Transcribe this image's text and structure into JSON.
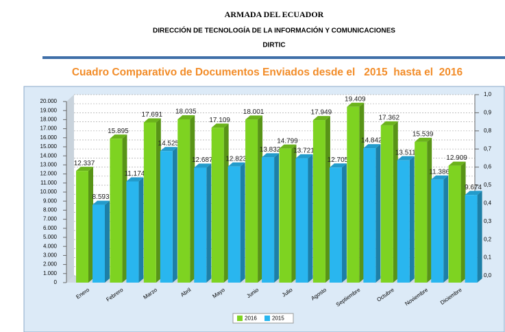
{
  "header": {
    "org": "ARMADA DEL ECUADOR",
    "department": "DIRECCIÓN DE TECNOLOGÍA DE LA INFORMACIÓN Y COMUNICACIONES",
    "acronym": "DIRTIC"
  },
  "chart_data": {
    "type": "bar",
    "title": "Cuadro Comparativo de Documentos Enviados desde el   2015  hasta el  2016",
    "categories": [
      "Enero",
      "Febrero",
      "Marzo",
      "Abril",
      "Mayo",
      "Junio",
      "Julio",
      "Agosto",
      "Septiembre",
      "Octubre",
      "Noviembre",
      "Diciembre"
    ],
    "series": [
      {
        "name": "2016",
        "color": "#7ed321",
        "values": [
          12337,
          15895,
          17691,
          18035,
          17109,
          18001,
          14799,
          17949,
          19409,
          17362,
          15539,
          12909
        ],
        "value_labels": [
          "12.337",
          "15.895",
          "17.691",
          "18.035",
          "17.109",
          "18.001",
          "14.799",
          "17.949",
          "19.409",
          "17.362",
          "15.539",
          "12.909"
        ]
      },
      {
        "name": "2015",
        "color": "#29b6ef",
        "values": [
          8593,
          11174,
          14525,
          12687,
          12823,
          13832,
          13721,
          12705,
          14842,
          13511,
          11386,
          9674
        ],
        "value_labels": [
          "8.593",
          "11.174",
          "14.525",
          "12.687",
          "12.823",
          "13.832",
          "13.721",
          "12.705",
          "14.842",
          "13.511",
          "11.386",
          "9.674"
        ]
      }
    ],
    "ylim": [
      0,
      20000
    ],
    "yticks": [
      {
        "value": 0,
        "label": "0"
      },
      {
        "value": 1000,
        "label": "1.000"
      },
      {
        "value": 2000,
        "label": "2.000"
      },
      {
        "value": 3000,
        "label": "3.000"
      },
      {
        "value": 4000,
        "label": "4.000"
      },
      {
        "value": 5000,
        "label": "5.000"
      },
      {
        "value": 6000,
        "label": "6.000"
      },
      {
        "value": 7000,
        "label": "7.000"
      },
      {
        "value": 8000,
        "label": "8.000"
      },
      {
        "value": 9000,
        "label": "9.000"
      },
      {
        "value": 10000,
        "label": "10.000"
      },
      {
        "value": 11000,
        "label": "11.000"
      },
      {
        "value": 12000,
        "label": "12.000"
      },
      {
        "value": 13000,
        "label": "13.000"
      },
      {
        "value": 14000,
        "label": "14.000"
      },
      {
        "value": 15000,
        "label": "15.000"
      },
      {
        "value": 16000,
        "label": "16.000"
      },
      {
        "value": 17000,
        "label": "17.000"
      },
      {
        "value": 18000,
        "label": "18.000"
      },
      {
        "value": 19000,
        "label": "19.000"
      },
      {
        "value": 20000,
        "label": "20.000"
      }
    ],
    "y2lim": [
      0,
      1
    ],
    "y2ticks": [
      {
        "value": 0,
        "label": "0,0"
      },
      {
        "value": 0.1,
        "label": "0,1"
      },
      {
        "value": 0.2,
        "label": "0,2"
      },
      {
        "value": 0.3,
        "label": "0,3"
      },
      {
        "value": 0.4,
        "label": "0,4"
      },
      {
        "value": 0.5,
        "label": "0,5"
      },
      {
        "value": 0.6,
        "label": "0,6"
      },
      {
        "value": 0.7,
        "label": "0,7"
      },
      {
        "value": 0.8,
        "label": "0,8"
      },
      {
        "value": 0.9,
        "label": "0,9"
      },
      {
        "value": 1,
        "label": "1,0"
      }
    ],
    "grid": true,
    "legend": "bottom"
  }
}
